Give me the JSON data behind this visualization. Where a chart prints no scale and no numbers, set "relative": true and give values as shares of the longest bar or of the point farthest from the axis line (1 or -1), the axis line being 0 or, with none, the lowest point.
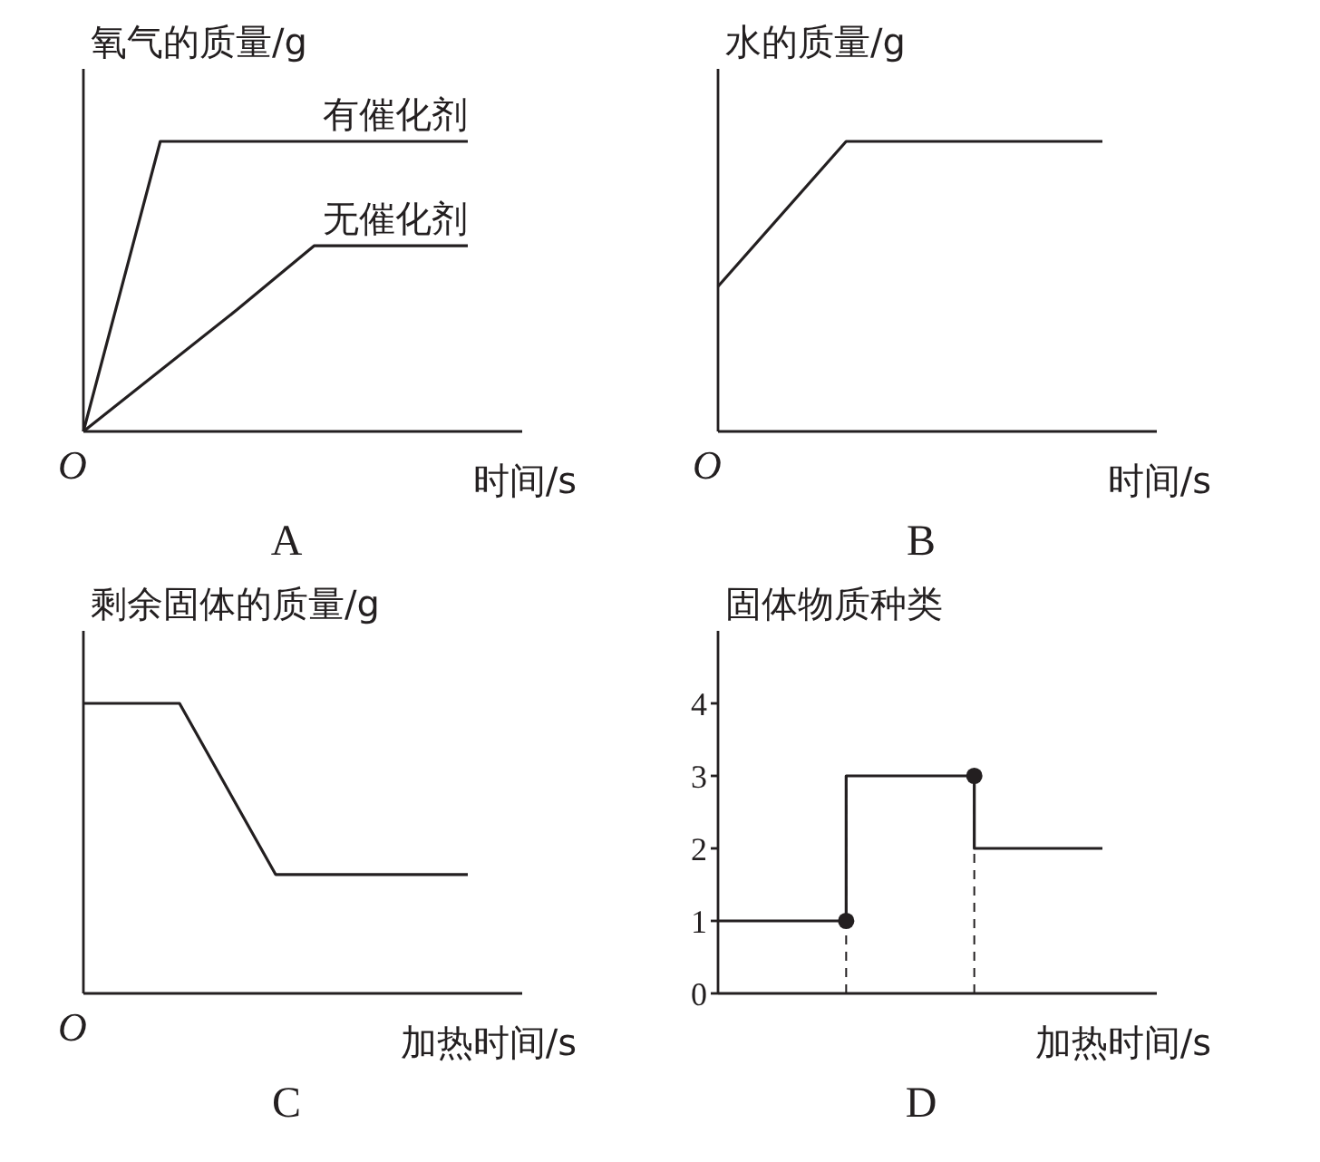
{
  "chart_data": [
    {
      "type": "line",
      "title": "A",
      "ylabel": "氧气的质量/g",
      "xlabel": "时间/s",
      "categories": [
        null,
        null,
        null,
        null,
        null,
        null
      ],
      "relative": true,
      "legend": false,
      "grid": false,
      "marker": "none",
      "tick_labels": false,
      "annotations": [
        "O"
      ],
      "series": [
        {
          "name": "有催化剂",
          "color": "#231f20",
          "values": [
            0,
            1,
            1,
            1,
            1,
            1
          ]
        },
        {
          "name": "无催化剂",
          "color": "#231f20",
          "values": [
            0,
            0.21,
            0.42,
            0.64,
            0.64,
            0.64
          ]
        }
      ]
    },
    {
      "type": "line",
      "title": "B",
      "ylabel": "水的质量/g",
      "xlabel": "时间/s",
      "categories": [
        null,
        null,
        null,
        null
      ],
      "relative": true,
      "legend": false,
      "grid": false,
      "marker": "none",
      "tick_labels": false,
      "annotations": [
        "O"
      ],
      "series": [
        {
          "color": "#231f20",
          "values": [
            0.5,
            1,
            1,
            1
          ]
        }
      ]
    },
    {
      "type": "line",
      "title": "C",
      "ylabel": "剩余固体的质量/g",
      "xlabel": "加热时间/s",
      "categories": [
        null,
        null,
        null,
        null,
        null
      ],
      "relative": true,
      "legend": false,
      "grid": false,
      "marker": "none",
      "tick_labels": false,
      "annotations": [
        "O"
      ],
      "series": [
        {
          "color": "#231f20",
          "values": [
            1,
            1,
            0.41,
            0.41,
            0.41
          ]
        }
      ]
    },
    {
      "type": "step",
      "title": "D",
      "ylabel": "固体物质种类",
      "xlabel": "加热时间/s",
      "categories": [
        null,
        null,
        null,
        null
      ],
      "ylim": [
        0,
        5
      ],
      "yticks": [
        0,
        1,
        2,
        3,
        4
      ],
      "legend": false,
      "grid": false,
      "marker": "none",
      "tick_labels": "y",
      "series": [
        {
          "color": "#231f20",
          "values": [
            1,
            3,
            2,
            2
          ]
        },
        {
          "type": "scatter",
          "marker": "circle",
          "color": "#231f20",
          "values": [
            null,
            1,
            3,
            null
          ]
        }
      ]
    }
  ]
}
